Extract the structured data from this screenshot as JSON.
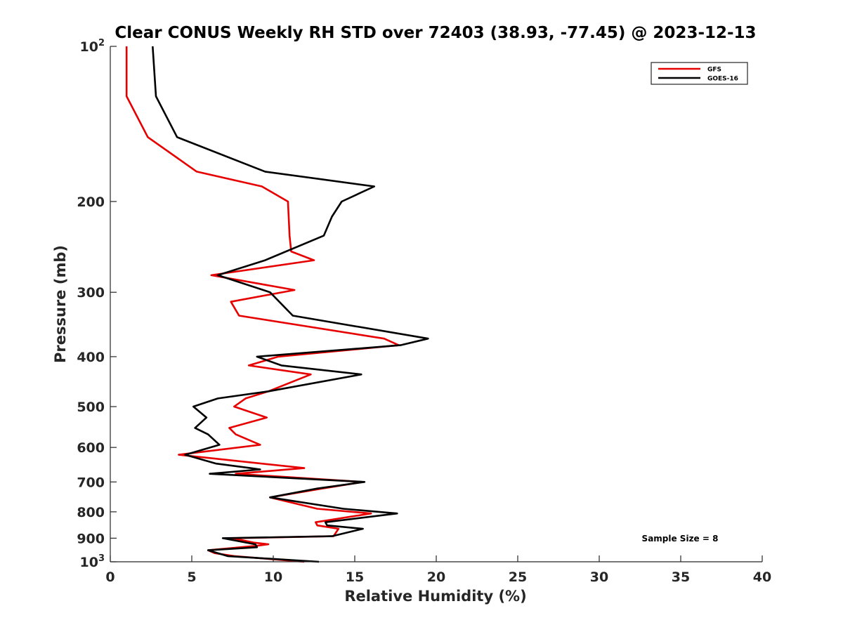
{
  "chart_data": {
    "type": "line",
    "title": "Clear CONUS Weekly RH STD over 72403 (38.93, -77.45) @ 2023-12-13",
    "xlabel": "Relative Humidity (%)",
    "ylabel": "Pressure (mb)",
    "xlim": [
      0,
      40
    ],
    "ylim": [
      100,
      1000
    ],
    "y_scale": "log",
    "y_reversed": true,
    "x_ticks": [
      0,
      5,
      10,
      15,
      20,
      25,
      30,
      35,
      40
    ],
    "y_ticks": [
      {
        "value": 100,
        "label": "10",
        "sup": "2"
      },
      {
        "value": 200,
        "label": "200"
      },
      {
        "value": 300,
        "label": "300"
      },
      {
        "value": 400,
        "label": "400"
      },
      {
        "value": 500,
        "label": "500"
      },
      {
        "value": 600,
        "label": "600"
      },
      {
        "value": 700,
        "label": "700"
      },
      {
        "value": 800,
        "label": "800"
      },
      {
        "value": 900,
        "label": "900"
      },
      {
        "value": 1000,
        "label": "10",
        "sup": "3"
      }
    ],
    "grid": false,
    "legend_position": "top-right",
    "annotation": "Sample Size = 8",
    "series": [
      {
        "name": "GFS",
        "color": "#e60000",
        "points": [
          [
            1.0,
            100
          ],
          [
            1.0,
            125
          ],
          [
            2.3,
            150
          ],
          [
            5.3,
            175
          ],
          [
            9.3,
            187
          ],
          [
            10.9,
            200
          ],
          [
            11.0,
            233
          ],
          [
            11.1,
            250
          ],
          [
            12.5,
            260
          ],
          [
            6.2,
            278
          ],
          [
            11.3,
            297
          ],
          [
            7.4,
            313
          ],
          [
            7.9,
            333
          ],
          [
            16.8,
            369
          ],
          [
            17.7,
            380
          ],
          [
            10.3,
            400
          ],
          [
            8.5,
            416
          ],
          [
            12.3,
            433
          ],
          [
            9.7,
            467
          ],
          [
            8.3,
            482
          ],
          [
            7.6,
            500
          ],
          [
            9.6,
            525
          ],
          [
            7.3,
            550
          ],
          [
            7.7,
            566
          ],
          [
            9.2,
            593
          ],
          [
            4.2,
            620
          ],
          [
            11.9,
            658
          ],
          [
            7.7,
            675
          ],
          [
            15.5,
            700
          ],
          [
            13.0,
            721
          ],
          [
            9.8,
            750
          ],
          [
            12.7,
            789
          ],
          [
            16.0,
            806
          ],
          [
            12.6,
            838
          ],
          [
            12.7,
            850
          ],
          [
            14.0,
            863
          ],
          [
            13.7,
            892
          ],
          [
            7.5,
            900
          ],
          [
            8.8,
            918
          ],
          [
            9.7,
            925
          ],
          [
            9.0,
            931
          ],
          [
            6.0,
            950
          ],
          [
            6.4,
            962
          ],
          [
            7.6,
            975
          ],
          [
            11.9,
            1000
          ]
        ]
      },
      {
        "name": "GOES-16",
        "color": "#000000",
        "points": [
          [
            2.6,
            100
          ],
          [
            2.8,
            125
          ],
          [
            4.1,
            150
          ],
          [
            9.5,
            175
          ],
          [
            16.2,
            187
          ],
          [
            14.2,
            200
          ],
          [
            13.6,
            214
          ],
          [
            13.1,
            233
          ],
          [
            9.5,
            260
          ],
          [
            6.6,
            278
          ],
          [
            9.8,
            300
          ],
          [
            11.2,
            333
          ],
          [
            19.5,
            369
          ],
          [
            17.8,
            380
          ],
          [
            9.0,
            400
          ],
          [
            10.5,
            416
          ],
          [
            15.4,
            433
          ],
          [
            9.7,
            467
          ],
          [
            6.6,
            482
          ],
          [
            5.1,
            500
          ],
          [
            5.9,
            525
          ],
          [
            5.2,
            550
          ],
          [
            6.0,
            566
          ],
          [
            6.7,
            593
          ],
          [
            4.6,
            620
          ],
          [
            6.5,
            645
          ],
          [
            8.6,
            658
          ],
          [
            9.2,
            662
          ],
          [
            6.1,
            675
          ],
          [
            15.6,
            700
          ],
          [
            12.7,
            721
          ],
          [
            9.8,
            750
          ],
          [
            14.3,
            789
          ],
          [
            17.6,
            806
          ],
          [
            13.2,
            838
          ],
          [
            13.3,
            850
          ],
          [
            15.5,
            863
          ],
          [
            13.6,
            892
          ],
          [
            6.9,
            900
          ],
          [
            8.9,
            925
          ],
          [
            9.0,
            937
          ],
          [
            6.0,
            950
          ],
          [
            7.2,
            975
          ],
          [
            12.8,
            1000
          ]
        ]
      }
    ]
  },
  "legend": {
    "items": [
      {
        "name": "GFS",
        "color": "#e60000"
      },
      {
        "name": "GOES-16",
        "color": "#000000"
      }
    ]
  }
}
